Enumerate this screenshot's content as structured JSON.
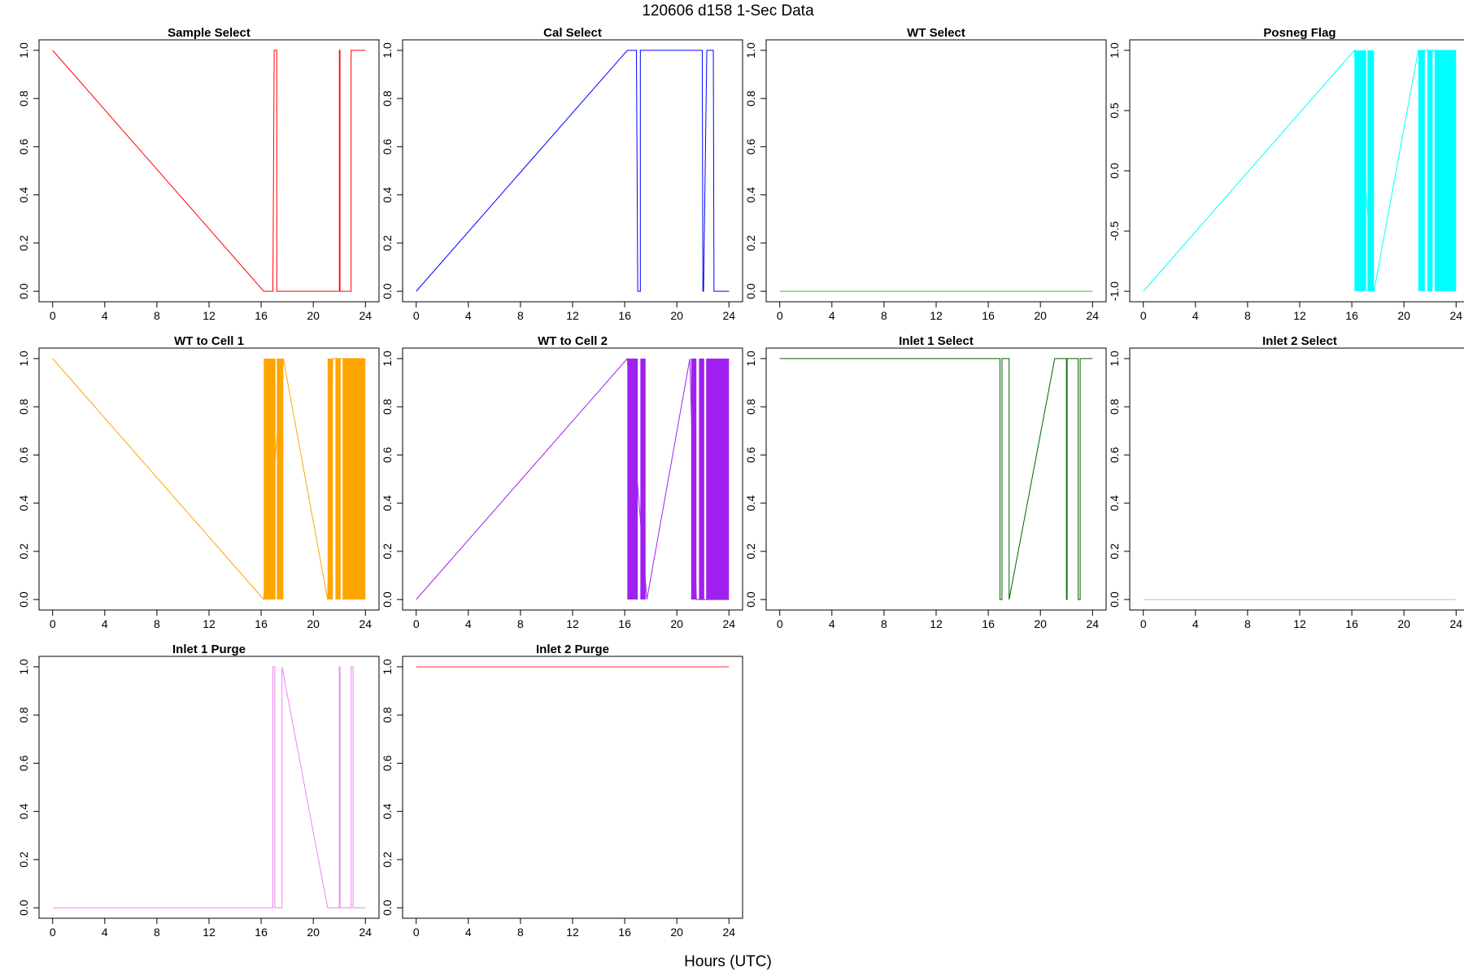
{
  "page": {
    "title": "120606   d158   1-Sec Data",
    "xlabel": "Hours (UTC)"
  },
  "chart_data": [
    {
      "type": "line",
      "title": "Sample Select",
      "color": "#ff0000",
      "xlim": [
        0,
        24
      ],
      "ylim": [
        0,
        1
      ],
      "x_ticks": [
        "0",
        "4",
        "8",
        "12",
        "16",
        "20",
        "24"
      ],
      "y_ticks": [
        "0.0",
        "0.2",
        "0.4",
        "0.6",
        "0.8",
        "1.0"
      ],
      "series": [
        {
          "x": [
            0,
            16.2,
            16.9,
            17.0,
            17.0,
            17.2,
            17.2,
            22.0,
            22.0,
            22.05,
            22.05,
            22.9,
            22.9,
            24.0
          ],
          "y": [
            1,
            0,
            0,
            1,
            1,
            1,
            0,
            0,
            1,
            1,
            0,
            0,
            1,
            1
          ]
        }
      ]
    },
    {
      "type": "line",
      "title": "Cal Select",
      "color": "#0000ff",
      "xlim": [
        0,
        24
      ],
      "ylim": [
        0,
        1
      ],
      "x_ticks": [
        "0",
        "4",
        "8",
        "12",
        "16",
        "20",
        "24"
      ],
      "y_ticks": [
        "0.0",
        "0.2",
        "0.4",
        "0.6",
        "0.8",
        "1.0"
      ],
      "series": [
        {
          "x": [
            0,
            16.2,
            16.9,
            17.0,
            17.0,
            17.2,
            17.2,
            21.95,
            22.0,
            22.05,
            22.3,
            22.3,
            22.8,
            22.85,
            24.0
          ],
          "y": [
            0,
            1,
            1,
            0,
            0,
            0,
            1,
            1,
            0,
            0,
            1,
            1,
            1,
            0,
            0
          ]
        }
      ]
    },
    {
      "type": "line",
      "title": "WT Select",
      "color": "#00ee00",
      "xlim": [
        0,
        24
      ],
      "ylim": [
        0,
        1
      ],
      "x_ticks": [
        "0",
        "4",
        "8",
        "12",
        "16",
        "20",
        "24"
      ],
      "y_ticks": [
        "0.0",
        "0.2",
        "0.4",
        "0.6",
        "0.8",
        "1.0"
      ],
      "series": [
        {
          "x": [
            0,
            24
          ],
          "y": [
            0,
            0
          ]
        }
      ]
    },
    {
      "type": "line",
      "title": "Posneg Flag",
      "color": "#00ffff",
      "xlim": [
        0,
        24
      ],
      "ylim": [
        -1,
        1
      ],
      "x_ticks": [
        "0",
        "4",
        "8",
        "12",
        "16",
        "20",
        "24"
      ],
      "y_ticks": [
        "-1.0",
        "-0.5",
        "0.0",
        "0.5",
        "1.0"
      ],
      "series": [
        {
          "x": [
            0,
            16.2,
            17.7,
            21.1,
            24.0
          ],
          "y": [
            -1,
            1,
            -1,
            1,
            1
          ]
        }
      ],
      "bands": [
        [
          16.2,
          17.1
        ],
        [
          17.2,
          17.7
        ],
        [
          21.1,
          21.6
        ],
        [
          21.8,
          22.2
        ],
        [
          22.35,
          24.0
        ]
      ]
    },
    {
      "type": "line",
      "title": "WT to Cell 1",
      "color": "#ffa500",
      "xlim": [
        0,
        24
      ],
      "ylim": [
        0,
        1
      ],
      "x_ticks": [
        "0",
        "4",
        "8",
        "12",
        "16",
        "20",
        "24"
      ],
      "y_ticks": [
        "0.0",
        "0.2",
        "0.4",
        "0.6",
        "0.8",
        "1.0"
      ],
      "series": [
        {
          "x": [
            0,
            16.2,
            17.7,
            21.1,
            21.5,
            24.0
          ],
          "y": [
            1,
            0,
            1,
            0,
            1,
            1
          ]
        }
      ],
      "bands": [
        [
          16.2,
          17.1
        ],
        [
          17.2,
          17.7
        ],
        [
          21.1,
          21.5
        ],
        [
          21.7,
          22.1
        ],
        [
          22.25,
          24.0
        ]
      ]
    },
    {
      "type": "line",
      "title": "WT to Cell 2",
      "color": "#a020f0",
      "xlim": [
        0,
        24
      ],
      "ylim": [
        0,
        1
      ],
      "x_ticks": [
        "0",
        "4",
        "8",
        "12",
        "16",
        "20",
        "24"
      ],
      "y_ticks": [
        "0.0",
        "0.2",
        "0.4",
        "0.6",
        "0.8",
        "1.0"
      ],
      "series": [
        {
          "x": [
            0,
            16.2,
            17.7,
            21.0,
            21.5,
            24.0
          ],
          "y": [
            0,
            1,
            0,
            1,
            0,
            0
          ]
        }
      ],
      "bands": [
        [
          16.2,
          17.0
        ],
        [
          17.2,
          17.6
        ],
        [
          21.1,
          21.5
        ],
        [
          21.7,
          22.1
        ],
        [
          22.25,
          24.0
        ]
      ]
    },
    {
      "type": "line",
      "title": "Inlet 1 Select",
      "color": "#006400",
      "xlim": [
        0,
        24
      ],
      "ylim": [
        0,
        1
      ],
      "x_ticks": [
        "0",
        "4",
        "8",
        "12",
        "16",
        "20",
        "24"
      ],
      "y_ticks": [
        "0.0",
        "0.2",
        "0.4",
        "0.6",
        "0.8",
        "1.0"
      ],
      "series": [
        {
          "x": [
            0,
            16.9,
            16.9,
            17.05,
            17.05,
            17.6,
            17.6,
            21.1,
            22.0,
            22.0,
            22.05,
            22.05,
            22.9,
            22.9,
            23.05,
            23.05,
            24.0
          ],
          "y": [
            1,
            1,
            0,
            0,
            1,
            1,
            0,
            1,
            1,
            0,
            0,
            1,
            1,
            0,
            0,
            1,
            1
          ]
        }
      ]
    },
    {
      "type": "line",
      "title": "Inlet 2 Select",
      "color": "#bebebe",
      "xlim": [
        0,
        24
      ],
      "ylim": [
        0,
        1
      ],
      "x_ticks": [
        "0",
        "4",
        "8",
        "12",
        "16",
        "20",
        "24"
      ],
      "y_ticks": [
        "0.0",
        "0.2",
        "0.4",
        "0.6",
        "0.8",
        "1.0"
      ],
      "series": [
        {
          "x": [
            0,
            24
          ],
          "y": [
            0,
            0
          ]
        }
      ]
    },
    {
      "type": "line",
      "title": "Inlet 1 Purge",
      "color": "#ee82ee",
      "xlim": [
        0,
        24
      ],
      "ylim": [
        0,
        1
      ],
      "x_ticks": [
        "0",
        "4",
        "8",
        "12",
        "16",
        "20",
        "24"
      ],
      "y_ticks": [
        "0.0",
        "0.2",
        "0.4",
        "0.6",
        "0.8",
        "1.0"
      ],
      "series": [
        {
          "x": [
            0,
            16.9,
            16.9,
            17.05,
            17.05,
            17.6,
            17.6,
            21.1,
            22.0,
            22.0,
            22.05,
            22.05,
            22.9,
            22.9,
            23.05,
            23.05,
            24.0
          ],
          "y": [
            0,
            0,
            1,
            1,
            0,
            0,
            1,
            0,
            0,
            1,
            1,
            0,
            0,
            1,
            1,
            0,
            0
          ]
        }
      ]
    },
    {
      "type": "line",
      "title": "Inlet 2 Purge",
      "color": "#ff3030",
      "xlim": [
        0,
        24
      ],
      "ylim": [
        0,
        1
      ],
      "x_ticks": [
        "0",
        "4",
        "8",
        "12",
        "16",
        "20",
        "24"
      ],
      "y_ticks": [
        "0.0",
        "0.2",
        "0.4",
        "0.6",
        "0.8",
        "1.0"
      ],
      "series": [
        {
          "x": [
            0,
            24
          ],
          "y": [
            1,
            1
          ]
        }
      ]
    }
  ]
}
